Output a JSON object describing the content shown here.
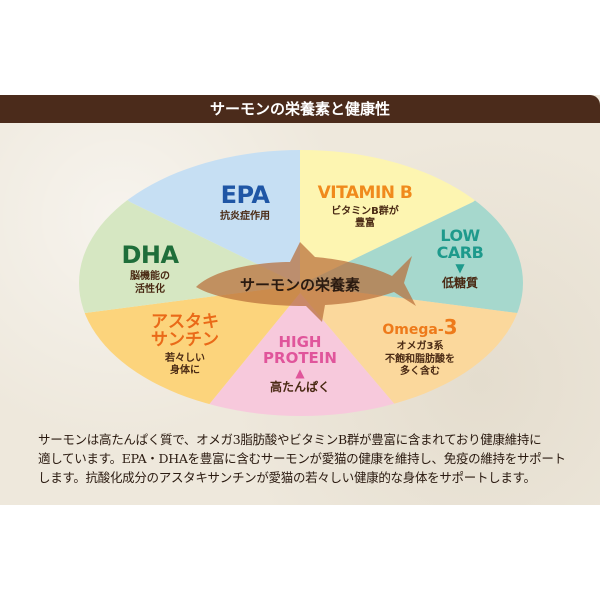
{
  "title": "サーモンの栄養素と健康性",
  "center_label": "サーモンの栄養素",
  "segments": {
    "epa": {
      "title": "EPA",
      "sub": "抗炎症作用",
      "color": "#c6dff3",
      "text_color": "#1f56a5"
    },
    "vitamin_b": {
      "title": "VITAMIN B",
      "sub1": "ビタミンB群が",
      "sub2": "豊富",
      "color": "#fdf5b1",
      "text_color": "#f08a1c"
    },
    "low_carb": {
      "title1": "LOW",
      "title2": "CARB",
      "arrow": "▼",
      "sub": "低糖質",
      "color": "#a6d8cd",
      "text_color": "#1e9a8c"
    },
    "omega3": {
      "title": "Omega-",
      "title_num": "3",
      "sub1": "オメガ3系",
      "sub2": "不飽和脂肪酸を",
      "sub3": "多く含む",
      "color": "#fbd89c",
      "text_color": "#ee7a1a"
    },
    "high_protein": {
      "title1": "HIGH",
      "title2": "PROTEIN",
      "arrow": "▲",
      "sub": "高たんぱく",
      "color": "#f7c9dc",
      "text_color": "#e0559b"
    },
    "astaxanthin": {
      "title1": "アスタキ",
      "title2": "サンチン",
      "sub1": "若々しい",
      "sub2": "身体に",
      "color": "#fcd47c",
      "text_color": "#ea6a18"
    },
    "dha": {
      "title": "DHA",
      "sub1": "脳機能の",
      "sub2": "活性化",
      "color": "#d6e7c2",
      "text_color": "#1f6e3a"
    }
  },
  "description": [
    "サーモンは高たんぱく質で、オメガ3脂肪酸やビタミンB群が豊富に含まれており健康維持に",
    "適しています。EPA・DHAを豊富に含むサーモンが愛猫の健康を維持し、免疫の維持をサポート",
    "します。抗酸化成分のアスタキサンチンが愛猫の若々しい健康的な身体をサポートします。"
  ]
}
